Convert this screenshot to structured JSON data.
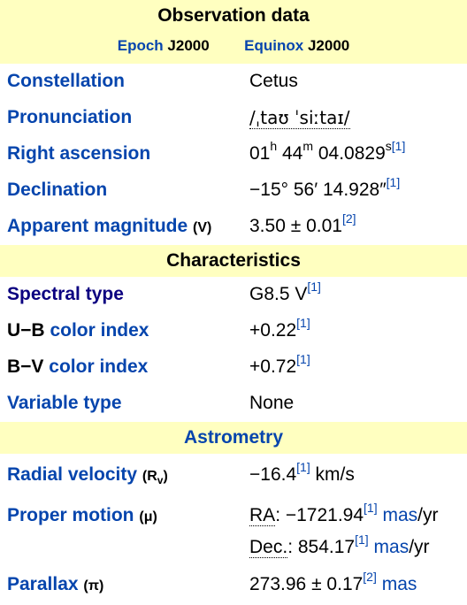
{
  "observation": {
    "title": "Observation data",
    "epoch_label": "Epoch",
    "epoch_value": "J2000",
    "equinox_label": "Equinox",
    "equinox_value": "J2000"
  },
  "constellation": {
    "label": "Constellation",
    "value": "Cetus"
  },
  "pronunciation": {
    "label": "Pronunciation",
    "value": "/ˌtaʊ ˈsiːtaɪ/"
  },
  "right_ascension": {
    "label": "Right ascension",
    "h": "01",
    "h_unit": "h",
    "m": " 44",
    "m_unit": "m",
    "s": " 04.0829",
    "s_unit": "s",
    "ref": "[1]"
  },
  "declination": {
    "label": "Declination",
    "value": "−15° 56′ 14.928″",
    "ref": "[1]"
  },
  "apparent_magnitude": {
    "label": "Apparent magnitude",
    "suffix": "(V)",
    "value": "3.50 ± 0.01",
    "ref": "[2]"
  },
  "characteristics": {
    "title": "Characteristics"
  },
  "spectral_type": {
    "label": "Spectral type",
    "value": "G8.5 V",
    "ref": "[1]"
  },
  "ub_index": {
    "label_bold": "U−B",
    "label_link": " color index",
    "value": "+0.22",
    "ref": "[1]"
  },
  "bv_index": {
    "label_bold": "B−V",
    "label_link": " color index",
    "value": "+0.72",
    "ref": "[1]"
  },
  "variable_type": {
    "label": "Variable type",
    "value": "None"
  },
  "astrometry": {
    "title": "Astrometry"
  },
  "radial_velocity": {
    "label": "Radial velocity",
    "suffix": "(R",
    "suffix_sub": "v",
    "suffix_end": ")",
    "value": "−16.4",
    "ref": "[1]",
    "unit": " km/s"
  },
  "proper_motion": {
    "label": "Proper motion",
    "suffix": "(μ)",
    "ra_label": "RA",
    "ra_value": ": −1721.94",
    "ra_ref": "[1]",
    "ra_unit_link": "mas",
    "ra_unit_rest": "/yr",
    "dec_label": "Dec.",
    "dec_value": ": 854.17",
    "dec_ref": "[1]",
    "dec_unit_link": "mas",
    "dec_unit_rest": "/yr"
  },
  "parallax": {
    "label": "Parallax",
    "suffix": "(π)",
    "value": "273.96 ± 0.17",
    "ref": "[2]",
    "unit": "mas"
  }
}
